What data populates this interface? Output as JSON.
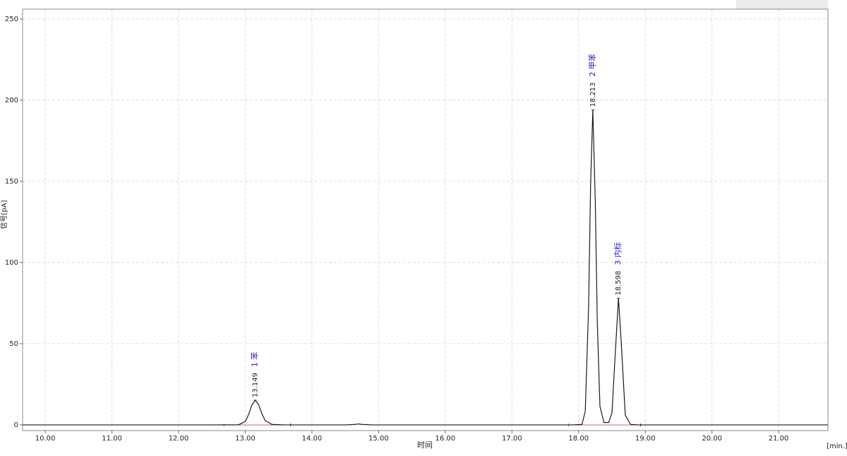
{
  "chart_data": {
    "type": "line",
    "x_label": "时间",
    "x_unit": "[min.]",
    "y_label": "信号[pA]",
    "xlim": [
      9.66,
      21.74
    ],
    "ylim": [
      -3.5,
      256
    ],
    "xticks": [
      {
        "value": 10,
        "label": "10.00"
      },
      {
        "value": 11,
        "label": "11.00"
      },
      {
        "value": 12,
        "label": "12.00"
      },
      {
        "value": 13,
        "label": "13.00"
      },
      {
        "value": 14,
        "label": "14.00"
      },
      {
        "value": 15,
        "label": "15.00"
      },
      {
        "value": 16,
        "label": "16.00"
      },
      {
        "value": 17,
        "label": "17.00"
      },
      {
        "value": 18,
        "label": "18.00"
      },
      {
        "value": 19,
        "label": "19.00"
      },
      {
        "value": 20,
        "label": "20.00"
      },
      {
        "value": 21,
        "label": "21.00"
      }
    ],
    "yticks": [
      0,
      50,
      100,
      150,
      200,
      250
    ],
    "grid": true,
    "x": [
      9.66,
      12.5,
      12.9,
      13.0,
      13.05,
      13.1,
      13.149,
      13.2,
      13.25,
      13.3,
      13.4,
      13.6,
      14.5,
      14.65,
      14.7,
      14.75,
      14.9,
      17.9,
      18.05,
      18.1,
      18.15,
      18.18,
      18.213,
      18.25,
      18.28,
      18.32,
      18.38,
      18.42,
      18.45,
      18.5,
      18.55,
      18.598,
      18.64,
      18.7,
      18.78,
      18.9,
      21.74
    ],
    "series": [
      {
        "color": "#1a1a1a",
        "values": [
          0,
          0,
          0.1,
          2.1,
          6.4,
          12.3,
          15.2,
          12.5,
          6.8,
          2.6,
          0.3,
          0,
          0,
          0.3,
          0.6,
          0.3,
          0,
          0,
          0.3,
          8.3,
          72.8,
          148,
          194,
          138,
          64,
          11.5,
          1.5,
          1.5,
          1.5,
          7.3,
          44,
          78,
          50.5,
          6.1,
          0.3,
          0,
          0
        ]
      }
    ],
    "baseline_color": "#e06060",
    "baselines": [
      {
        "start": 12.68,
        "end": 13.68
      },
      {
        "start": 17.85,
        "end": 18.93
      }
    ],
    "peaks": [
      {
        "rt": 13.149,
        "height": 15.2,
        "name": "1  苯"
      },
      {
        "rt": 18.213,
        "height": 194,
        "name": "2  甲苯"
      },
      {
        "rt": 18.598,
        "height": 78,
        "name": "3  内标"
      }
    ],
    "peak_name_color": "#2222cc"
  }
}
